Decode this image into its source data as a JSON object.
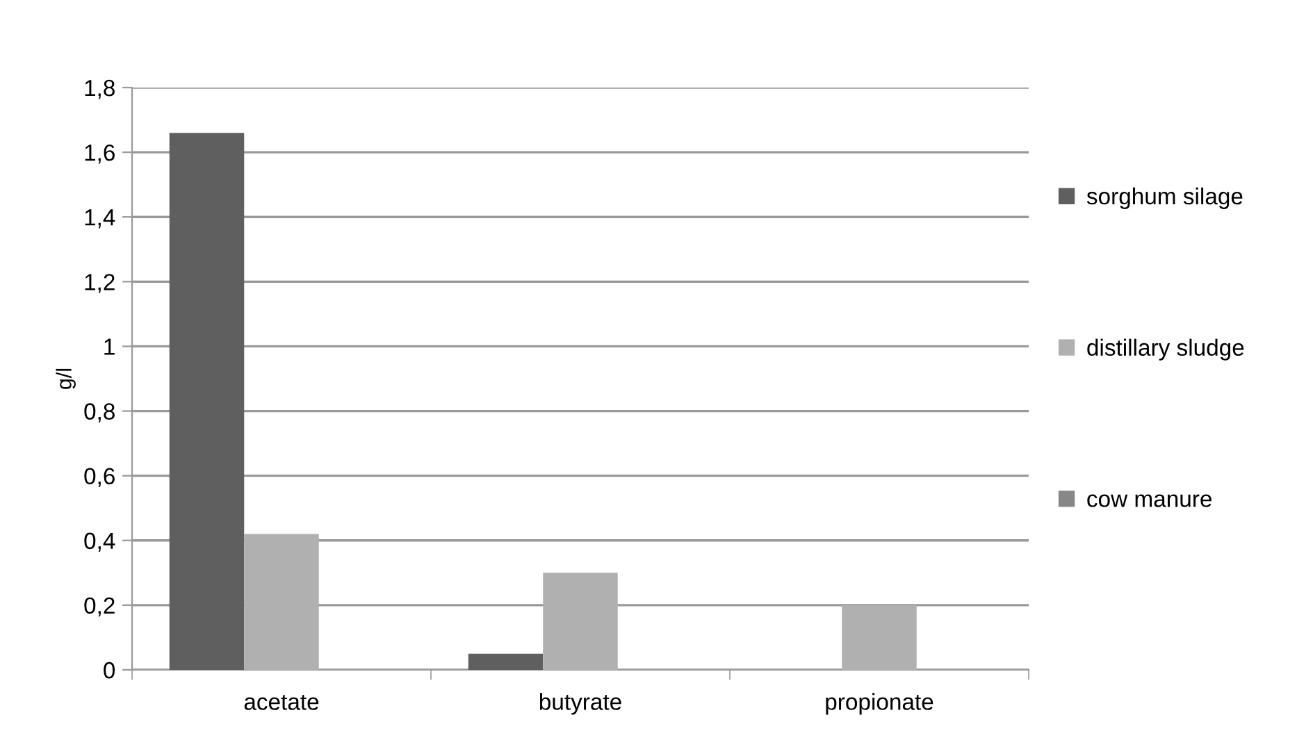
{
  "chart_data": {
    "type": "bar",
    "ylabel": "g/l",
    "categories": [
      "acetate",
      "butyrate",
      "propionate"
    ],
    "series": [
      {
        "name": "sorghum silage",
        "color": "#5f5f5f",
        "values": [
          1.66,
          0.05,
          0
        ]
      },
      {
        "name": "distillary sludge",
        "color": "#b0b0b0",
        "values": [
          0.42,
          0.3,
          0.2
        ]
      },
      {
        "name": "cow manure",
        "color": "#878787",
        "values": [
          0,
          0,
          0
        ]
      }
    ],
    "ylim": [
      0,
      1.8
    ],
    "yticks": [
      0,
      {
        "value": 0.2,
        "label": "0,2"
      },
      {
        "value": 0.4,
        "label": "0,4"
      },
      {
        "value": 0.6,
        "label": "0,6"
      },
      {
        "value": 0.8,
        "label": "0,8"
      },
      1,
      {
        "value": 1.2,
        "label": "1,2"
      },
      {
        "value": 1.4,
        "label": "1,4"
      },
      {
        "value": 1.6,
        "label": "1,6"
      },
      {
        "value": 1.8,
        "label": "1,8"
      }
    ],
    "grid": "y",
    "legend": "right"
  }
}
